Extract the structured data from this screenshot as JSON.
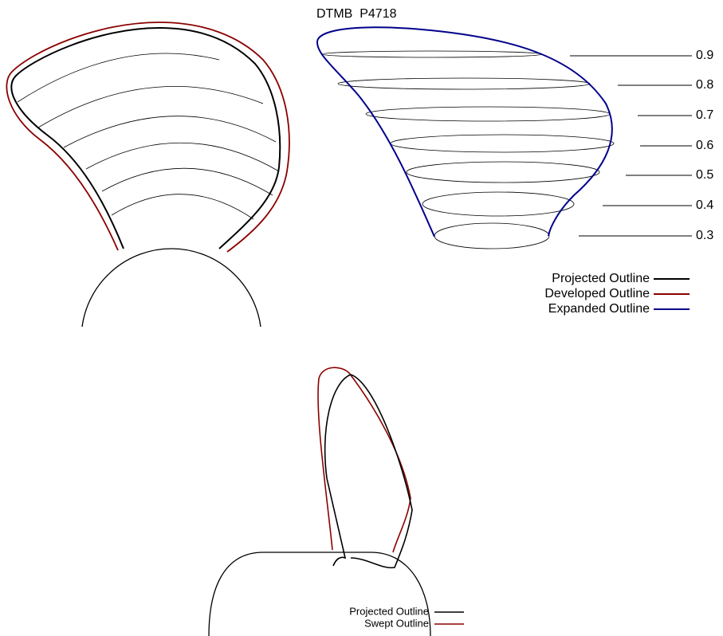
{
  "title": "DTMB  P4718",
  "radius_labels": [
    "0.9",
    "0.8",
    "0.7",
    "0.6",
    "0.5",
    "0.4",
    "0.3"
  ],
  "legend_top": [
    "Projected Outline",
    "Developed Outline",
    "Expanded Outline"
  ],
  "legend_bottom": [
    "Projected Outline",
    "Swept Outline"
  ]
}
